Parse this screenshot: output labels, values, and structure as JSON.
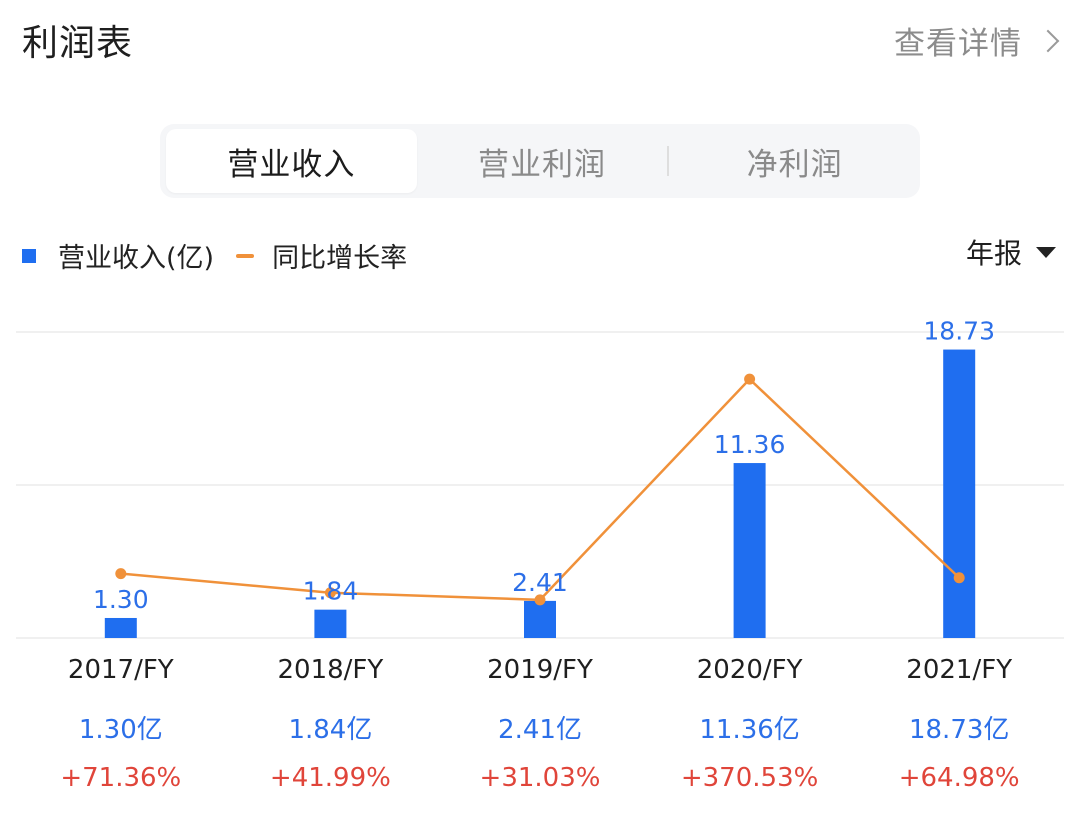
{
  "header": {
    "title": "利润表",
    "detail_label": "查看详情"
  },
  "tabs": [
    {
      "label": "营业收入",
      "active": true
    },
    {
      "label": "营业利润",
      "active": false
    },
    {
      "label": "净利润",
      "active": false
    }
  ],
  "legend": {
    "bar_label": "营业收入(亿)",
    "line_label": "同比增长率"
  },
  "period_select": {
    "label": "年报"
  },
  "colors": {
    "bar": "#1f6ef0",
    "line": "#f0913a",
    "revenue_text": "#2c6fe8",
    "growth_text": "#e0453a"
  },
  "chart_data": {
    "type": "bar",
    "categories": [
      "2017/FY",
      "2018/FY",
      "2019/FY",
      "2020/FY",
      "2021/FY"
    ],
    "series": [
      {
        "name": "营业收入(亿)",
        "type": "bar",
        "values": [
          1.3,
          1.84,
          2.41,
          11.36,
          18.73
        ],
        "labels": [
          "1.30",
          "1.84",
          "2.41",
          "11.36",
          "18.73"
        ]
      },
      {
        "name": "同比增长率",
        "type": "line",
        "values": [
          71.36,
          41.99,
          31.03,
          370.53,
          64.98
        ]
      }
    ],
    "revenue_labels": [
      "1.30亿",
      "1.84亿",
      "2.41亿",
      "11.36亿",
      "18.73亿"
    ],
    "growth_labels": [
      "+71.36%",
      "+41.99%",
      "+31.03%",
      "+370.53%",
      "+64.98%"
    ],
    "bar_ylim": [
      0,
      20
    ],
    "line_ylim": [
      0,
      400
    ],
    "grid": true,
    "legend_position": "top-left"
  }
}
